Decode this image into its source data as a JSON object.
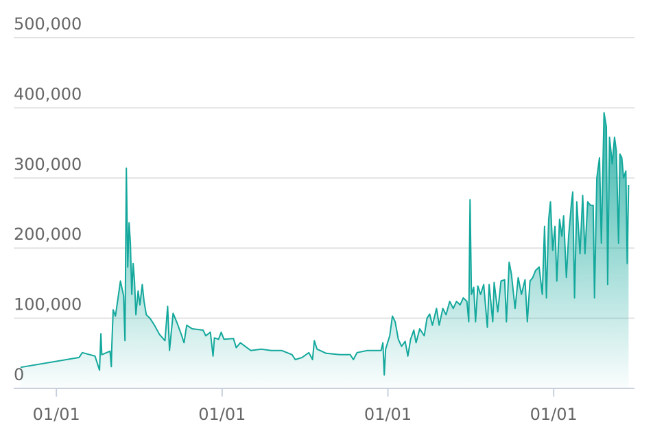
{
  "chart_data": {
    "type": "area",
    "color": "#14a89c",
    "grid": true,
    "x": [
      -79,
      50,
      57,
      85,
      95,
      98,
      100,
      118,
      121,
      122,
      125,
      130,
      141,
      148,
      151,
      154,
      157,
      160,
      163,
      166,
      169,
      172,
      175,
      180,
      184,
      189,
      193,
      198,
      206,
      216,
      227,
      239,
      245,
      249,
      257,
      266,
      275,
      281,
      287,
      299,
      323,
      329,
      339,
      345,
      348,
      357,
      363,
      369,
      390,
      396,
      405,
      428,
      451,
      473,
      496,
      519,
      526,
      541,
      556,
      564,
      568,
      574,
      594,
      624,
      647,
      654,
      662,
      685,
      715,
      719,
      722,
      725,
      734,
      740,
      746,
      753,
      760,
      768,
      774,
      780,
      787,
      792,
      800,
      810,
      816,
      822,
      828,
      837,
      843,
      851,
      858,
      866,
      874,
      881,
      889,
      896,
      904,
      908,
      911,
      914,
      919,
      923,
      928,
      934,
      941,
      949,
      953,
      961,
      964,
      972,
      979,
      987,
      991,
      997,
      1002,
      1010,
      1017,
      1024,
      1032,
      1037,
      1043,
      1049,
      1055,
      1063,
      1070,
      1075,
      1079,
      1084,
      1088,
      1093,
      1098,
      1102,
      1108,
      1113,
      1117,
      1123,
      1128,
      1134,
      1137,
      1141,
      1146,
      1153,
      1159,
      1164,
      1170,
      1176,
      1182,
      1185,
      1190,
      1196,
      1200,
      1206,
      1211,
      1214,
      1218,
      1224,
      1229,
      1233,
      1238,
      1241,
      1245,
      1249,
      1254,
      1257,
      1260
    ],
    "values": [
      30000,
      44000,
      51000,
      46000,
      26000,
      78000,
      48000,
      53000,
      31000,
      60000,
      112000,
      103000,
      153000,
      132000,
      68000,
      314000,
      173000,
      236000,
      207000,
      134000,
      178000,
      153000,
      105000,
      139000,
      119000,
      148000,
      124000,
      105000,
      100000,
      90000,
      77000,
      68000,
      117000,
      54000,
      107000,
      93000,
      77000,
      65000,
      90000,
      85000,
      83000,
      75000,
      80000,
      46000,
      72000,
      70000,
      80000,
      70000,
      71000,
      58000,
      65000,
      54000,
      56000,
      54000,
      54000,
      48000,
      41000,
      44000,
      51000,
      41000,
      68000,
      56000,
      50000,
      48000,
      48000,
      41000,
      51000,
      54000,
      54000,
      65000,
      19000,
      56000,
      75000,
      103000,
      95000,
      70000,
      60000,
      67000,
      46000,
      70000,
      83000,
      65000,
      85000,
      75000,
      100000,
      106000,
      90000,
      114000,
      90000,
      114000,
      105000,
      124000,
      114000,
      124000,
      119000,
      129000,
      124000,
      95000,
      269000,
      134000,
      144000,
      95000,
      146000,
      134000,
      148000,
      87000,
      148000,
      95000,
      151000,
      109000,
      153000,
      155000,
      95000,
      180000,
      163000,
      114000,
      158000,
      134000,
      155000,
      95000,
      153000,
      158000,
      168000,
      173000,
      134000,
      231000,
      129000,
      241000,
      266000,
      197000,
      231000,
      153000,
      241000,
      217000,
      246000,
      158000,
      217000,
      263000,
      280000,
      129000,
      266000,
      192000,
      275000,
      192000,
      266000,
      261000,
      261000,
      129000,
      300000,
      329000,
      207000,
      393000,
      373000,
      148000,
      358000,
      320000,
      358000,
      339000,
      207000,
      334000,
      329000,
      300000,
      310000,
      178000,
      290000
    ],
    "xlim": [
      -94,
      1273
    ],
    "xticks": [
      {
        "value": 0,
        "label": "01/01"
      },
      {
        "value": 365,
        "label": "01/01"
      },
      {
        "value": 730,
        "label": "01/01"
      },
      {
        "value": 1095,
        "label": "01/01"
      }
    ],
    "ylim": [
      0,
      500000
    ],
    "yticks": [
      0,
      {
        "value": 100000,
        "label": "100,000"
      },
      {
        "value": 200000,
        "label": "200,000"
      },
      {
        "value": 300000,
        "label": "300,000"
      },
      {
        "value": 400000,
        "label": "400,000"
      },
      {
        "value": 500000,
        "label": "500,000"
      }
    ]
  }
}
